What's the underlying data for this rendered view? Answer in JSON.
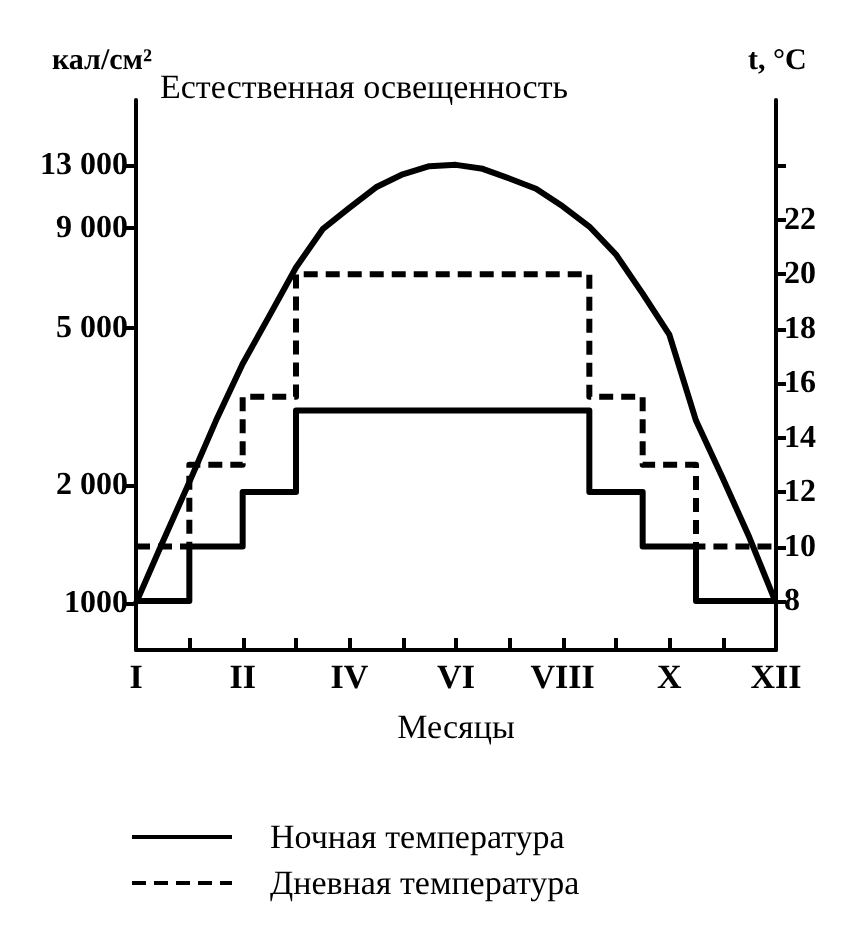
{
  "chart_data": {
    "type": "line",
    "title": "Естественная освещенность",
    "xlabel": "Месяцы",
    "ylabel": "кал/см²",
    "y2label": "t, °C",
    "categories": [
      "I",
      null,
      null,
      null,
      "II",
      null,
      null,
      null,
      "IV",
      null,
      null,
      null,
      "VI",
      null,
      null,
      null,
      "VIII",
      null,
      null,
      null,
      "X",
      null,
      null,
      null,
      "XII"
    ],
    "log": "y",
    "ylim": [
      760,
      19000
    ],
    "yticks": [
      {
        "value": 1000,
        "label": "1000"
      },
      {
        "value": 2000,
        "label": "2 000"
      },
      {
        "value": 5000,
        "label": "5 000"
      },
      {
        "value": 9000,
        "label": "9 000"
      },
      {
        "value": 13000,
        "label": "13 000"
      }
    ],
    "y2lim": [
      6.2,
      26.4
    ],
    "y2ticks": [
      8,
      10,
      12,
      14,
      16,
      18,
      20,
      22,
      {
        "value": 24,
        "label": null
      }
    ],
    "grid": false,
    "legend": "bottom",
    "series": [
      {
        "color": "#000000",
        "line_style": "solid",
        "values": [
          1000,
          1430,
          2030,
          2910,
          4060,
          5370,
          7130,
          8920,
          10100,
          11400,
          12300,
          12900,
          13000,
          12700,
          12000,
          11300,
          10200,
          9060,
          7690,
          6120,
          4810,
          2910,
          2080,
          1470,
          1000
        ]
      },
      {
        "type": "step",
        "name": "Ночная температура",
        "axis": "y2",
        "color": "#000000",
        "line_style": "solid",
        "values": [
          8,
          8,
          10,
          10,
          12,
          12,
          15,
          15,
          15,
          15,
          15,
          15,
          15,
          15,
          15,
          15,
          15,
          12,
          12,
          10,
          10,
          8,
          8,
          8,
          8
        ]
      },
      {
        "type": "step",
        "name": "Дневная температура",
        "axis": "y2",
        "color": "#000000",
        "line_style": "dashed",
        "values": [
          10,
          10,
          13,
          13,
          15.5,
          15.5,
          20,
          20,
          20,
          20,
          20,
          20,
          20,
          20,
          20,
          20,
          20,
          15.5,
          15.5,
          13,
          13,
          10,
          10,
          10,
          10
        ]
      }
    ]
  }
}
